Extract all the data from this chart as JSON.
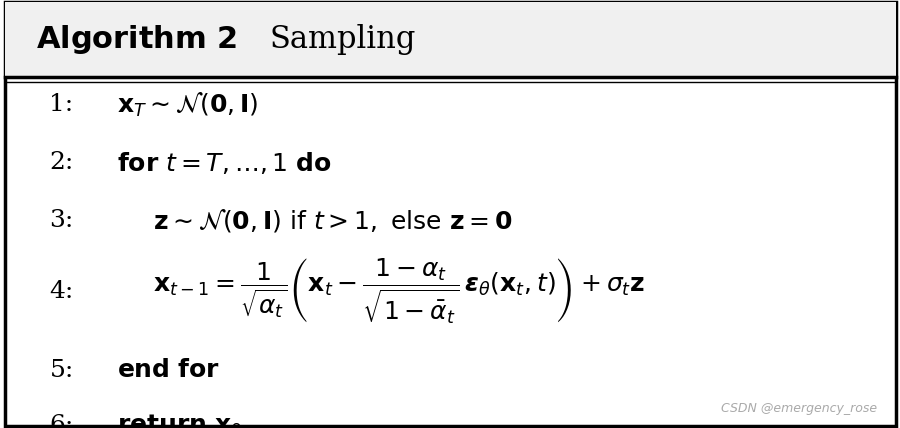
{
  "title_bold": "Algorithm 2",
  "title_normal": "Sampling",
  "line_nums": [
    "1:",
    "2:",
    "3:",
    "4:",
    "5:",
    "6:"
  ],
  "line_indents": [
    0,
    0,
    1,
    1,
    0,
    0
  ],
  "watermark": "CSDN @emergency_rose",
  "bg_color": "#ffffff",
  "border_color": "#000000",
  "title_bg_color": "#f0f0f0",
  "figsize": [
    9.0,
    4.28
  ],
  "dpi": 100,
  "title_fontsize": 22,
  "body_fontsize": 18,
  "watermark_fontsize": 9
}
